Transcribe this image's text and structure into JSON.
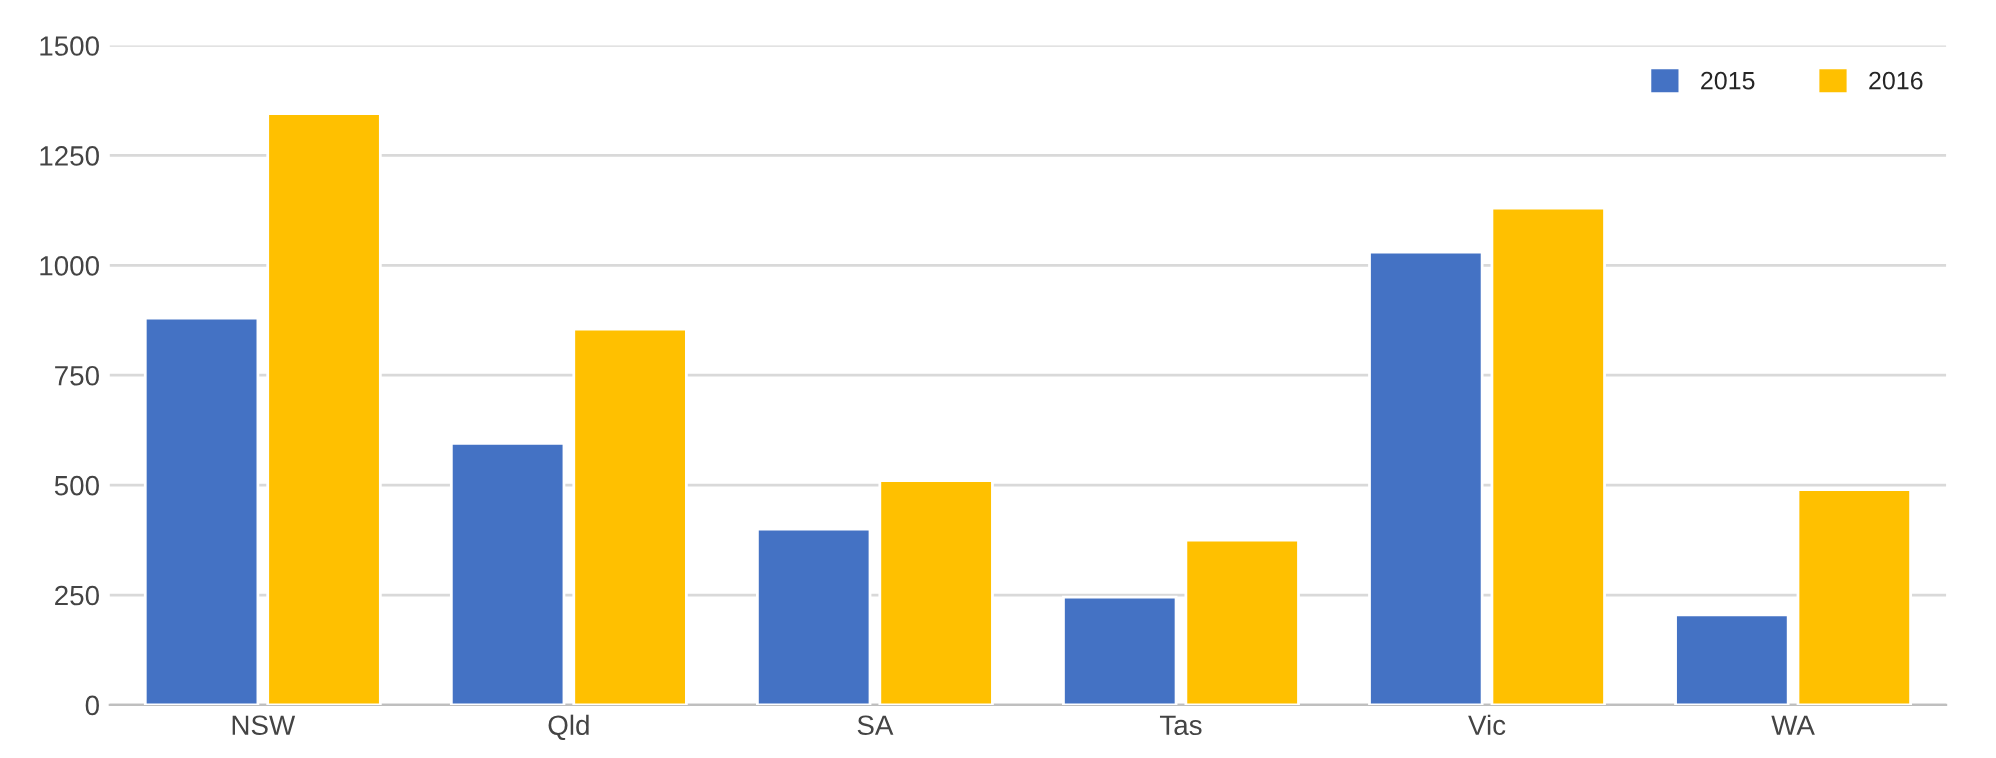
{
  "chart_data": {
    "type": "bar",
    "categories": [
      "NSW",
      "Qld",
      "SA",
      "Tas",
      "Vic",
      "WA"
    ],
    "series": [
      {
        "name": "2015",
        "color": "#4472c4",
        "values": [
          880,
          595,
          400,
          245,
          1030,
          205
        ]
      },
      {
        "name": "2016",
        "color": "#ffc000",
        "values": [
          1345,
          855,
          510,
          375,
          1130,
          490
        ]
      }
    ],
    "ylim": [
      0,
      1500
    ],
    "yticks": [
      0,
      250,
      500,
      750,
      1000,
      1250,
      1500
    ],
    "grid": "y",
    "legend": "top right"
  }
}
